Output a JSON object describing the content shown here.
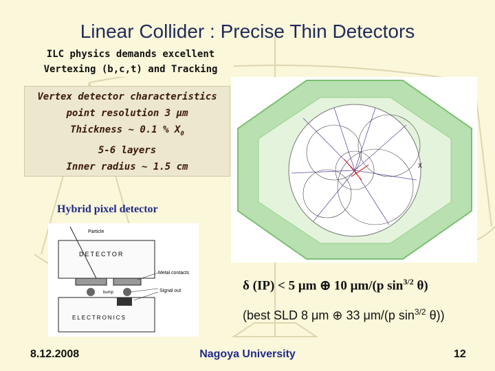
{
  "slide": {
    "title": "Linear Collider : Precise Thin Detectors",
    "intro": [
      "ILC physics demands excellent",
      "Vertexing (b,c,t) and Tracking"
    ],
    "vertex_box": {
      "heading": "Vertex detector characteristics",
      "resolution_prefix": "point resolution 3 ",
      "resolution_unit": "μm",
      "thickness_prefix": "Thickness ~ 0.1 % X",
      "thickness_sub": "0",
      "layers": "5-6 layers",
      "radius": "Inner radius ~ 1.5 cm"
    },
    "hybrid_label": "Hybrid pixel detector",
    "pixel_figure": {
      "particle": "Particle",
      "detector": "DETECTOR",
      "metal": "Metal contacts",
      "bump": "bump",
      "signal": "Signal out",
      "electronics": "ELECTRONICS"
    },
    "formula_ip": {
      "lhs": "δ (IP) < 5 μm ⊕ 10 μm/(p sin",
      "exp": "3/2",
      "rhs": " θ)"
    },
    "formula_sld": {
      "lhs": "(best SLD 8 μm ⊕ 33 μm/(p sin",
      "exp": "3/2",
      "rhs": " θ))"
    },
    "footer": {
      "date": "8.12.2008",
      "institution": "Nagoya University",
      "page": "12"
    }
  }
}
